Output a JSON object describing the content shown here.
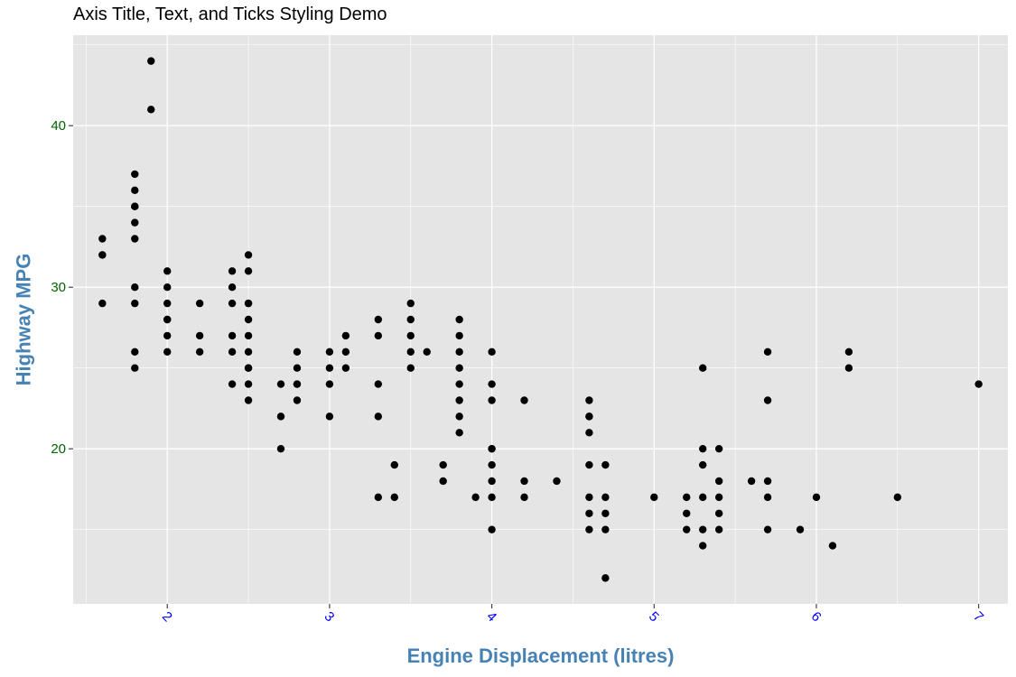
{
  "chart_data": {
    "type": "scatter",
    "title": "Axis Title, Text, and Ticks Styling Demo",
    "xlabel": "Engine Displacement (litres)",
    "ylabel": "Highway MPG",
    "xlim": [
      1.42,
      7.18
    ],
    "ylim": [
      10.4,
      45.6
    ],
    "x_ticks": [
      2,
      3,
      4,
      5,
      6,
      7
    ],
    "y_ticks": [
      20,
      30,
      40
    ],
    "grid": true,
    "legend": "none",
    "colors": {
      "panel_background": "#E5E5E5",
      "grid_major": "#FFFFFF",
      "points": "#000000",
      "axis_title": "#4682B4",
      "x_tick_text": "#0000FF",
      "y_tick_text": "#006400"
    },
    "x": [
      1.6,
      1.6,
      1.6,
      1.6,
      1.8,
      1.8,
      1.8,
      1.8,
      1.8,
      1.8,
      1.8,
      1.8,
      1.8,
      1.8,
      1.9,
      1.9,
      2.0,
      2.0,
      2.0,
      2.0,
      2.0,
      2.0,
      2.0,
      2.2,
      2.2,
      2.2,
      2.4,
      2.4,
      2.4,
      2.4,
      2.4,
      2.4,
      2.5,
      2.5,
      2.5,
      2.5,
      2.5,
      2.5,
      2.5,
      2.5,
      2.5,
      2.5,
      2.5,
      2.7,
      2.7,
      2.7,
      2.8,
      2.8,
      2.8,
      2.8,
      2.8,
      3.0,
      3.0,
      3.0,
      3.0,
      3.1,
      3.1,
      3.1,
      3.3,
      3.3,
      3.3,
      3.3,
      3.3,
      3.4,
      3.4,
      3.5,
      3.5,
      3.5,
      3.5,
      3.5,
      3.6,
      3.7,
      3.7,
      3.8,
      3.8,
      3.8,
      3.8,
      3.8,
      3.8,
      3.8,
      3.8,
      3.9,
      4.0,
      4.0,
      4.0,
      4.0,
      4.0,
      4.0,
      4.0,
      4.0,
      4.0,
      4.2,
      4.2,
      4.2,
      4.4,
      4.6,
      4.6,
      4.6,
      4.6,
      4.6,
      4.6,
      4.6,
      4.6,
      4.7,
      4.7,
      4.7,
      4.7,
      4.7,
      5.0,
      5.2,
      5.2,
      5.2,
      5.3,
      5.3,
      5.3,
      5.3,
      5.3,
      5.3,
      5.4,
      5.4,
      5.4,
      5.4,
      5.4,
      5.6,
      5.7,
      5.7,
      5.7,
      5.7,
      5.7,
      5.9,
      6.0,
      6.1,
      6.2,
      6.2,
      6.5,
      7.0
    ],
    "y": [
      33,
      32,
      29,
      32,
      37,
      36,
      35,
      34,
      33,
      30,
      29,
      26,
      25,
      35,
      44,
      41,
      31,
      30,
      29,
      28,
      27,
      26,
      28,
      29,
      27,
      26,
      31,
      30,
      29,
      27,
      26,
      24,
      32,
      31,
      29,
      28,
      27,
      26,
      25,
      24,
      23,
      29,
      25,
      24,
      22,
      20,
      26,
      25,
      24,
      23,
      24,
      26,
      25,
      24,
      22,
      27,
      26,
      25,
      28,
      27,
      24,
      22,
      17,
      19,
      17,
      29,
      28,
      27,
      26,
      25,
      26,
      19,
      18,
      28,
      27,
      26,
      25,
      23,
      22,
      21,
      24,
      17,
      26,
      24,
      23,
      20,
      19,
      18,
      17,
      15,
      20,
      23,
      18,
      17,
      18,
      23,
      22,
      21,
      19,
      17,
      16,
      15,
      22,
      19,
      17,
      16,
      15,
      12,
      17,
      17,
      16,
      15,
      25,
      20,
      19,
      15,
      14,
      17,
      20,
      18,
      17,
      16,
      15,
      18,
      26,
      23,
      18,
      17,
      15,
      15,
      17,
      14,
      26,
      25,
      17,
      24
    ]
  }
}
